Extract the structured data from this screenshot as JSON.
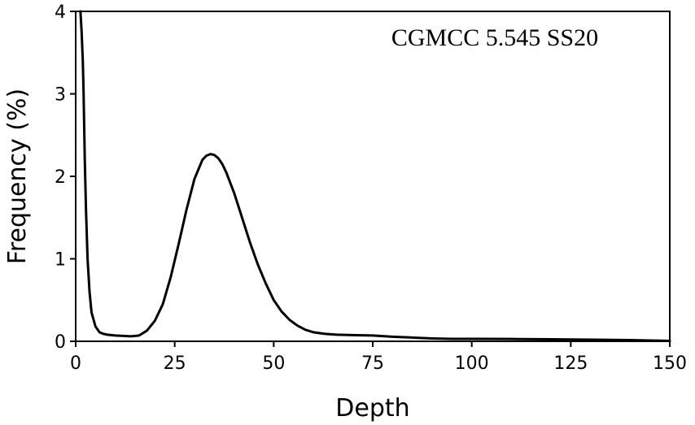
{
  "chart_data": {
    "type": "line",
    "title": "",
    "annotation": "CGMCC 5.545 SS20",
    "xlabel": "Depth",
    "ylabel": "Frequency (%)",
    "xlim": [
      0,
      150
    ],
    "ylim": [
      0,
      4
    ],
    "xticks": [
      0,
      25,
      50,
      75,
      100,
      125,
      150
    ],
    "yticks": [
      0,
      1,
      2,
      3,
      4
    ],
    "grid": false,
    "legend": "none",
    "line_color": "#000000",
    "series": [
      {
        "x": [
          1.2,
          1.5,
          1.8,
          2.0,
          2.3,
          2.6,
          3.0,
          3.5,
          4.0,
          5.0,
          6.0,
          7.0,
          8.0,
          10.0,
          12.0,
          14.0,
          16.0,
          18.0,
          20.0,
          22.0,
          24.0,
          26.0,
          28.0,
          30.0,
          32.0,
          33.0,
          34.0,
          35.0,
          36.0,
          37.0,
          38.0,
          40.0,
          42.0,
          44.0,
          46.0,
          48.0,
          50.0,
          52.0,
          54.0,
          56.0,
          58.0,
          60.0,
          63.0,
          66.0,
          70.0,
          75.0,
          80.0,
          85.0,
          90.0,
          95.0,
          100.0,
          110.0,
          120.0,
          130.0,
          140.0,
          150.0
        ],
        "y": [
          4.0,
          3.75,
          3.4,
          3.0,
          2.2,
          1.6,
          1.0,
          0.6,
          0.35,
          0.18,
          0.11,
          0.09,
          0.08,
          0.07,
          0.065,
          0.06,
          0.07,
          0.13,
          0.25,
          0.45,
          0.78,
          1.18,
          1.6,
          1.97,
          2.2,
          2.25,
          2.27,
          2.26,
          2.22,
          2.15,
          2.05,
          1.8,
          1.5,
          1.2,
          0.93,
          0.7,
          0.5,
          0.36,
          0.26,
          0.19,
          0.14,
          0.11,
          0.09,
          0.08,
          0.075,
          0.07,
          0.055,
          0.045,
          0.035,
          0.03,
          0.03,
          0.028,
          0.025,
          0.02,
          0.015,
          0.005
        ]
      }
    ]
  }
}
